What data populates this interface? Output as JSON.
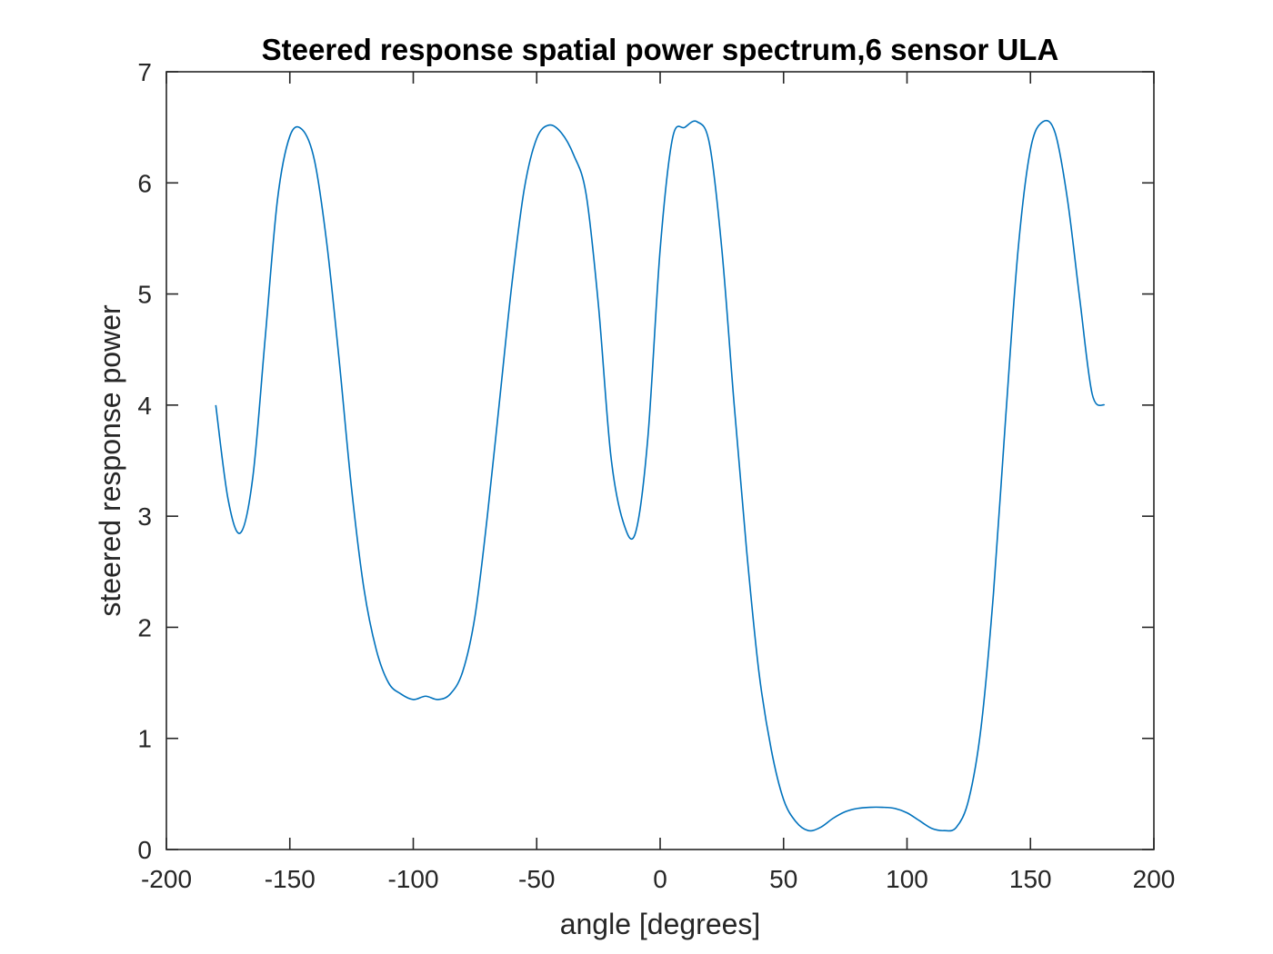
{
  "chart_data": {
    "type": "line",
    "title": "Steered response spatial power spectrum,6 sensor ULA",
    "xlabel": "angle [degrees]",
    "ylabel": "steered response power",
    "xlim": [
      -200,
      200
    ],
    "ylim": [
      0,
      7
    ],
    "xticks": [
      -200,
      -150,
      -100,
      -50,
      0,
      50,
      100,
      150,
      200
    ],
    "yticks": [
      0,
      1,
      2,
      3,
      4,
      5,
      6,
      7
    ],
    "xtick_labels": [
      "-200",
      "-150",
      "-100",
      "-50",
      "0",
      "50",
      "100",
      "150",
      "200"
    ],
    "ytick_labels": [
      "0",
      "1",
      "2",
      "3",
      "4",
      "5",
      "6",
      "7"
    ],
    "grid": false,
    "legend": "none",
    "series_color": "#0072BD",
    "series": [
      {
        "x": [
          -180,
          -175,
          -170,
          -165,
          -160,
          -155,
          -150,
          -145,
          -140,
          -135,
          -130,
          -125,
          -120,
          -115,
          -110,
          -105,
          -100,
          -95,
          -90,
          -85,
          -80,
          -75,
          -70,
          -65,
          -60,
          -55,
          -50,
          -45,
          -40,
          -35,
          -30,
          -25,
          -20,
          -15,
          -10,
          -5,
          0,
          5,
          10,
          15,
          20,
          25,
          30,
          35,
          40,
          45,
          50,
          55,
          60,
          65,
          70,
          75,
          80,
          85,
          90,
          95,
          100,
          105,
          110,
          115,
          120,
          125,
          130,
          135,
          140,
          145,
          150,
          155,
          160,
          165,
          170,
          175,
          180
        ],
        "y": [
          4.0,
          3.15,
          2.85,
          3.35,
          4.6,
          5.85,
          6.42,
          6.48,
          6.2,
          5.45,
          4.4,
          3.25,
          2.35,
          1.8,
          1.5,
          1.4,
          1.35,
          1.38,
          1.35,
          1.4,
          1.6,
          2.1,
          3.0,
          4.05,
          5.1,
          5.95,
          6.4,
          6.52,
          6.45,
          6.25,
          5.9,
          4.9,
          3.55,
          2.95,
          2.85,
          3.7,
          5.4,
          6.4,
          6.5,
          6.55,
          6.35,
          5.4,
          4.0,
          2.7,
          1.6,
          0.9,
          0.45,
          0.25,
          0.17,
          0.2,
          0.28,
          0.34,
          0.37,
          0.38,
          0.38,
          0.37,
          0.33,
          0.26,
          0.19,
          0.17,
          0.2,
          0.45,
          1.1,
          2.3,
          3.9,
          5.4,
          6.3,
          6.55,
          6.45,
          5.85,
          4.95,
          4.1,
          4.0
        ]
      }
    ]
  }
}
